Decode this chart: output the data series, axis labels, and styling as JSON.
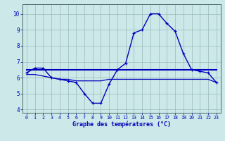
{
  "hours": [
    0,
    1,
    2,
    3,
    4,
    5,
    6,
    7,
    8,
    9,
    10,
    11,
    12,
    13,
    14,
    15,
    16,
    17,
    18,
    19,
    20,
    21,
    22,
    23
  ],
  "temp_curve": [
    6.3,
    6.6,
    6.6,
    6.0,
    5.9,
    5.8,
    5.7,
    5.0,
    4.4,
    4.4,
    5.6,
    6.5,
    6.9,
    8.8,
    9.0,
    10.0,
    10.0,
    9.4,
    8.9,
    7.5,
    6.5,
    6.4,
    6.3,
    5.7
  ],
  "flat_line1": [
    6.5,
    6.5,
    6.5,
    6.5,
    6.5,
    6.5,
    6.5,
    6.5,
    6.5,
    6.5,
    6.5,
    6.5,
    6.5,
    6.5,
    6.5,
    6.5,
    6.5,
    6.5,
    6.5,
    6.5,
    6.5,
    6.5,
    6.5,
    6.5
  ],
  "flat_line2": [
    6.2,
    6.2,
    6.1,
    6.0,
    5.9,
    5.9,
    5.8,
    5.8,
    5.8,
    5.8,
    5.9,
    5.9,
    5.9,
    5.9,
    5.9,
    5.9,
    5.9,
    5.9,
    5.9,
    5.9,
    5.9,
    5.9,
    5.9,
    5.7
  ],
  "line_color": "#0000bb",
  "bg_color": "#cce8e8",
  "grid_color": "#99bbbb",
  "xlabel": "Graphe des températures (°C)",
  "ylim": [
    3.8,
    10.6
  ],
  "xlim": [
    -0.5,
    23.5
  ],
  "yticks": [
    4,
    5,
    6,
    7,
    8,
    9,
    10
  ],
  "xticks": [
    0,
    1,
    2,
    3,
    4,
    5,
    6,
    7,
    8,
    9,
    10,
    11,
    12,
    13,
    14,
    15,
    16,
    17,
    18,
    19,
    20,
    21,
    22,
    23
  ]
}
